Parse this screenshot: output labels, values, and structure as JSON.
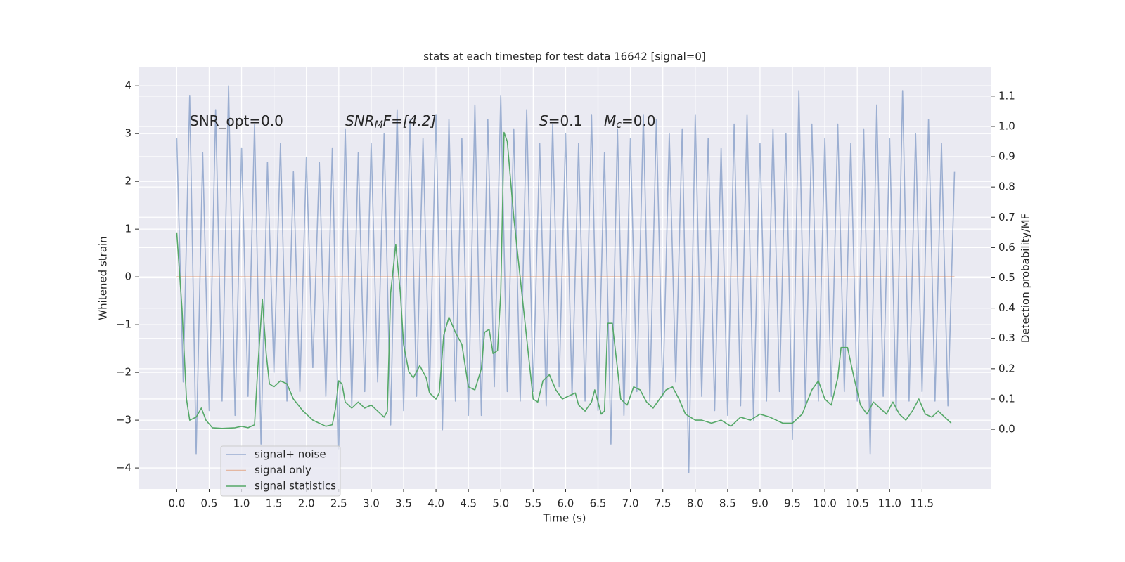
{
  "chart_data": {
    "type": "line",
    "title": "stats at each timestep for test data 16642 [signal=0]",
    "xlabel": "Time (s)",
    "ylabel": "Whitened strain",
    "y2label": "Detection probability/MF",
    "annotations": [
      {
        "text": "SNR_opt=0.0"
      },
      {
        "italic": "SNR",
        "sub": "M",
        "text": "F=[4.2]"
      },
      {
        "italic": "S",
        "text": "=0.1"
      },
      {
        "italic": "M",
        "sub": "c",
        "text": "=0.0"
      }
    ],
    "xlim": [
      -0.59,
      12.57
    ],
    "ylim": [
      -4.44,
      4.4
    ],
    "y2lim": [
      -0.197,
      1.197
    ],
    "xticks": [
      {
        "value": 0,
        "label": "0.0"
      },
      {
        "value": 0.5,
        "label": "0.5"
      },
      {
        "value": 1,
        "label": "1.0"
      },
      {
        "value": 1.5,
        "label": "1.5"
      },
      {
        "value": 2,
        "label": "2.0"
      },
      {
        "value": 2.5,
        "label": "2.5"
      },
      {
        "value": 3,
        "label": "3.0"
      },
      {
        "value": 3.5,
        "label": "3.5"
      },
      {
        "value": 4,
        "label": "4.0"
      },
      {
        "value": 4.5,
        "label": "4.5"
      },
      {
        "value": 5,
        "label": "5.0"
      },
      {
        "value": 5.5,
        "label": "5.5"
      },
      {
        "value": 6,
        "label": "6.0"
      },
      {
        "value": 6.5,
        "label": "6.5"
      },
      {
        "value": 7,
        "label": "7.0"
      },
      {
        "value": 7.5,
        "label": "7.5"
      },
      {
        "value": 8,
        "label": "8.0"
      },
      {
        "value": 8.5,
        "label": "8.5"
      },
      {
        "value": 9,
        "label": "9.0"
      },
      {
        "value": 9.5,
        "label": "9.5"
      },
      {
        "value": 10,
        "label": "10.0"
      },
      {
        "value": 10.5,
        "label": "10.5"
      },
      {
        "value": 11,
        "label": "11.0"
      },
      {
        "value": 11.5,
        "label": "11.5"
      }
    ],
    "yticks": [
      {
        "value": -4,
        "label": "−4"
      },
      {
        "value": -3,
        "label": "−3"
      },
      {
        "value": -2,
        "label": "−2"
      },
      {
        "value": -1,
        "label": "−1"
      },
      0,
      1,
      2,
      3,
      4
    ],
    "y2ticks": [
      {
        "value": 0,
        "label": "0.0"
      },
      {
        "value": 0.1,
        "label": "0.1"
      },
      {
        "value": 0.2,
        "label": "0.2"
      },
      {
        "value": 0.3,
        "label": "0.3"
      },
      {
        "value": 0.4,
        "label": "0.4"
      },
      {
        "value": 0.5,
        "label": "0.5"
      },
      {
        "value": 0.6,
        "label": "0.6"
      },
      {
        "value": 0.7,
        "label": "0.7"
      },
      {
        "value": 0.8,
        "label": "0.8"
      },
      {
        "value": 0.9,
        "label": "0.9"
      },
      {
        "value": 1,
        "label": "1.0"
      },
      {
        "value": 1.1,
        "label": "1.1"
      }
    ],
    "grid": true,
    "legend": "lower left",
    "series": [
      {
        "name": "signal+ noise",
        "color": "#4c72b0",
        "opacity": 0.5,
        "x": [
          0,
          0.1,
          0.2,
          0.3,
          0.4,
          0.5,
          0.6,
          0.7,
          0.8,
          0.9,
          1,
          1.1,
          1.2,
          1.3,
          1.4,
          1.5,
          1.6,
          1.7,
          1.8,
          1.9,
          2,
          2.1,
          2.2,
          2.3,
          2.4,
          2.5,
          2.6,
          2.7,
          2.8,
          2.9,
          3,
          3.1,
          3.2,
          3.3,
          3.4,
          3.5,
          3.6,
          3.7,
          3.8,
          3.9,
          4,
          4.1,
          4.2,
          4.3,
          4.4,
          4.5,
          4.6,
          4.7,
          4.8,
          4.9,
          5,
          5.1,
          5.2,
          5.3,
          5.4,
          5.5,
          5.6,
          5.7,
          5.8,
          5.9,
          6,
          6.1,
          6.2,
          6.3,
          6.4,
          6.5,
          6.6,
          6.7,
          6.8,
          6.9,
          7,
          7.1,
          7.2,
          7.3,
          7.4,
          7.5,
          7.6,
          7.7,
          7.8,
          7.9,
          8,
          8.1,
          8.2,
          8.3,
          8.4,
          8.5,
          8.6,
          8.7,
          8.8,
          8.9,
          9,
          9.1,
          9.2,
          9.3,
          9.4,
          9.5,
          9.6,
          9.7,
          9.8,
          9.9,
          10,
          10.1,
          10.2,
          10.3,
          10.4,
          10.5,
          10.6,
          10.7,
          10.8,
          10.9,
          11,
          11.1,
          11.2,
          11.3,
          11.4,
          11.5,
          11.6,
          11.7,
          11.8,
          11.9,
          12
        ],
        "values": [
          2.9,
          -2.2,
          3.8,
          -3.7,
          2.6,
          -2.8,
          3.5,
          -2.6,
          4.0,
          -2.9,
          2.7,
          -2.5,
          3.2,
          -3.5,
          2.4,
          -2.0,
          2.8,
          -2.6,
          2.2,
          -2.4,
          2.5,
          -1.9,
          2.4,
          -2.5,
          2.7,
          -3.6,
          3.1,
          -2.7,
          2.6,
          -2.4,
          2.8,
          -2.2,
          3.0,
          -3.1,
          3.5,
          -2.8,
          3.3,
          -2.5,
          2.9,
          -2.4,
          3.4,
          -3.2,
          3.3,
          -2.6,
          2.9,
          -2.9,
          3.6,
          -2.9,
          3.3,
          -2.3,
          3.8,
          -2.4,
          3.1,
          -2.6,
          3.5,
          -2.4,
          2.8,
          -2.7,
          3.2,
          -2.3,
          3.0,
          -2.5,
          2.8,
          -2.6,
          3.4,
          -2.8,
          2.6,
          -3.5,
          3.1,
          -2.9,
          2.9,
          -2.4,
          3.4,
          -2.6,
          3.3,
          -2.5,
          3.0,
          -2.2,
          3.1,
          -4.1,
          3.4,
          -2.5,
          2.9,
          -2.8,
          2.7,
          -2.9,
          3.2,
          -2.7,
          3.4,
          -3.0,
          2.8,
          -2.6,
          3.1,
          -2.4,
          3.0,
          -3.4,
          3.9,
          -2.7,
          3.2,
          -2.6,
          2.9,
          -2.5,
          3.2,
          -2.4,
          2.8,
          -2.6,
          3.1,
          -3.7,
          3.6,
          -2.5,
          2.9,
          -2.8,
          3.9,
          -2.6,
          3.0,
          -2.4,
          3.3,
          -2.6,
          2.8,
          -2.7,
          2.2
        ]
      },
      {
        "name": "signal only",
        "color": "#dd8452",
        "opacity": 0.5,
        "x": [
          0,
          12
        ],
        "values": [
          0,
          0
        ]
      },
      {
        "name": "signal statistics",
        "color": "#55a868",
        "opacity": 1,
        "axis": "y2",
        "x": [
          0,
          0.08,
          0.15,
          0.2,
          0.3,
          0.38,
          0.45,
          0.55,
          0.7,
          0.9,
          1,
          1.1,
          1.2,
          1.25,
          1.32,
          1.38,
          1.43,
          1.5,
          1.6,
          1.7,
          1.8,
          1.95,
          2.1,
          2.3,
          2.4,
          2.45,
          2.5,
          2.55,
          2.6,
          2.7,
          2.8,
          2.9,
          3,
          3.1,
          3.2,
          3.25,
          3.3,
          3.38,
          3.45,
          3.5,
          3.58,
          3.65,
          3.75,
          3.85,
          3.9,
          4,
          4.05,
          4.12,
          4.2,
          4.3,
          4.4,
          4.5,
          4.6,
          4.7,
          4.75,
          4.82,
          4.88,
          4.95,
          5,
          5.05,
          5.1,
          5.2,
          5.3,
          5.4,
          5.5,
          5.57,
          5.65,
          5.75,
          5.85,
          5.95,
          6.05,
          6.15,
          6.2,
          6.3,
          6.4,
          6.45,
          6.55,
          6.6,
          6.65,
          6.72,
          6.8,
          6.85,
          6.95,
          7.05,
          7.15,
          7.25,
          7.35,
          7.45,
          7.55,
          7.65,
          7.75,
          7.85,
          8,
          8.1,
          8.25,
          8.4,
          8.55,
          8.7,
          8.85,
          9,
          9.15,
          9.35,
          9.5,
          9.65,
          9.8,
          9.9,
          10,
          10.1,
          10.2,
          10.25,
          10.35,
          10.45,
          10.55,
          10.65,
          10.75,
          10.85,
          10.95,
          11.05,
          11.15,
          11.25,
          11.35,
          11.45,
          11.55,
          11.65,
          11.75,
          11.85,
          11.95
        ],
        "values": [
          0.65,
          0.4,
          0.1,
          0.03,
          0.04,
          0.07,
          0.03,
          0.005,
          0.003,
          0.005,
          0.01,
          0.005,
          0.015,
          0.2,
          0.43,
          0.25,
          0.15,
          0.14,
          0.16,
          0.15,
          0.1,
          0.06,
          0.03,
          0.01,
          0.015,
          0.07,
          0.16,
          0.15,
          0.09,
          0.07,
          0.09,
          0.07,
          0.08,
          0.06,
          0.04,
          0.06,
          0.45,
          0.61,
          0.45,
          0.28,
          0.19,
          0.17,
          0.21,
          0.17,
          0.12,
          0.1,
          0.12,
          0.31,
          0.37,
          0.32,
          0.28,
          0.14,
          0.13,
          0.2,
          0.32,
          0.33,
          0.25,
          0.26,
          0.45,
          0.98,
          0.95,
          0.7,
          0.5,
          0.3,
          0.1,
          0.09,
          0.16,
          0.18,
          0.13,
          0.1,
          0.11,
          0.12,
          0.08,
          0.06,
          0.09,
          0.13,
          0.05,
          0.06,
          0.35,
          0.35,
          0.2,
          0.1,
          0.08,
          0.14,
          0.13,
          0.09,
          0.07,
          0.1,
          0.13,
          0.14,
          0.1,
          0.05,
          0.03,
          0.03,
          0.02,
          0.03,
          0.01,
          0.04,
          0.03,
          0.05,
          0.04,
          0.02,
          0.02,
          0.05,
          0.13,
          0.16,
          0.1,
          0.08,
          0.17,
          0.27,
          0.27,
          0.17,
          0.08,
          0.05,
          0.09,
          0.07,
          0.05,
          0.09,
          0.05,
          0.03,
          0.06,
          0.1,
          0.05,
          0.04,
          0.06,
          0.04,
          0.02
        ]
      }
    ]
  }
}
